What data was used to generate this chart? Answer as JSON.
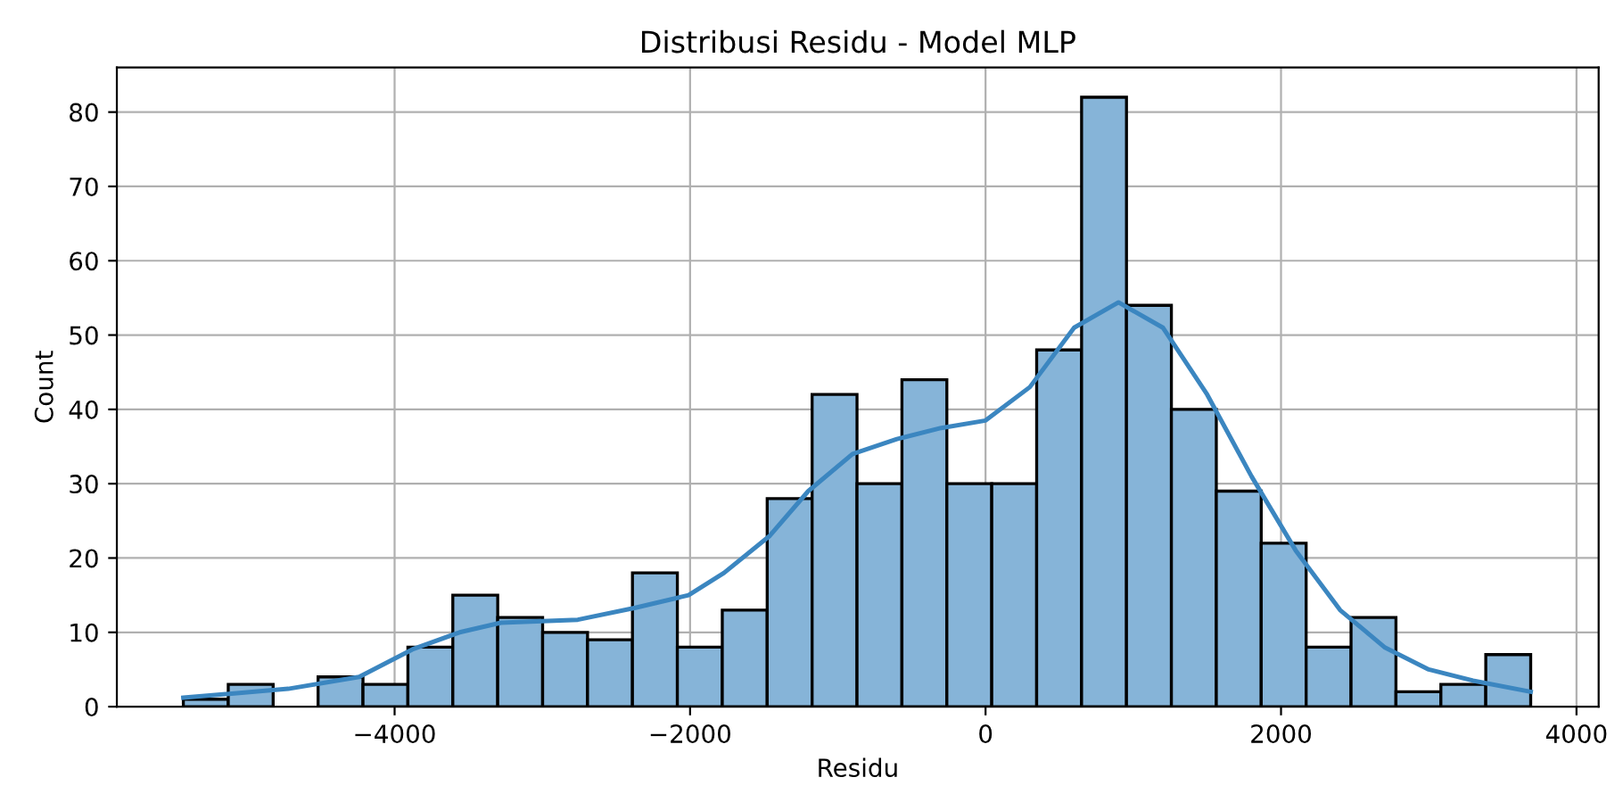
{
  "chart_data": {
    "type": "histogram",
    "title": "Distribusi Residu - Model MLP",
    "xlabel": "Residu",
    "ylabel": "Count",
    "bins": [
      -5430,
      -5126,
      -4822,
      -4518,
      -4214,
      -3910,
      -3606,
      -3302,
      -2998,
      -2694,
      -2390,
      -2086,
      -1782,
      -1478,
      -1174,
      -870,
      -566,
      -262,
      42,
      346,
      650,
      954,
      1258,
      1562,
      1866,
      2170,
      2474,
      2778,
      3082,
      3386,
      3690
    ],
    "series": [
      {
        "type": "histogram",
        "color": "#86b4d8",
        "values": [
          1,
          3,
          0,
          4,
          3,
          8,
          15,
          12,
          10,
          9,
          18,
          8,
          13,
          28,
          42,
          30,
          44,
          30,
          30,
          48,
          82,
          54,
          40,
          29,
          22,
          8,
          12,
          2,
          3,
          7
        ]
      },
      {
        "type": "line",
        "color": "#3b86c0",
        "x": [
          -5430,
          -4720,
          -4240,
          -3880,
          -3560,
          -3280,
          -2760,
          -2370,
          -2010,
          -1770,
          -1460,
          -1200,
          -900,
          -600,
          -300,
          0,
          300,
          600,
          900,
          1200,
          1500,
          1800,
          2100,
          2400,
          2700,
          3000,
          3300,
          3690
        ],
        "values": [
          1.2,
          2.4,
          4,
          7.7,
          10,
          11.3,
          11.7,
          13.3,
          15,
          18,
          23,
          29,
          34,
          36,
          37.5,
          38.5,
          43,
          51,
          54.4,
          51,
          42,
          31,
          21,
          13,
          8,
          5,
          3.5,
          2
        ]
      }
    ],
    "xlim": [
      -5880,
      4150
    ],
    "xticks": [
      {
        "value": -4000,
        "label": "−4000"
      },
      {
        "value": -2000,
        "label": "−2000"
      },
      0,
      2000,
      4000
    ],
    "ylim": [
      0,
      86
    ],
    "yticks": [
      0,
      10,
      20,
      30,
      40,
      50,
      60,
      70,
      80
    ],
    "grid": true
  }
}
